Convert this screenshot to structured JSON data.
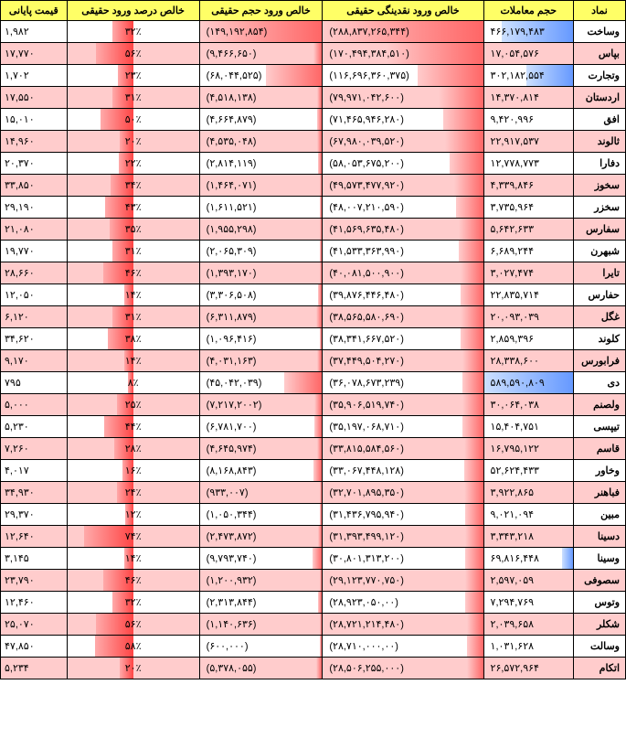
{
  "headers": {
    "symbol": "نماد",
    "volume": "حجم معاملات",
    "liquidity": "خالص ورود نقدینگی حقیقی",
    "netvol": "خالص ورود حجم حقیقی",
    "percent": "خالص درصد ورود حقیقی",
    "price": "قیمت پایانی"
  },
  "bar_color_red_start": "#ff6666",
  "bar_color_red_end": "#ffcccc",
  "bar_color_blue_start": "#6699ff",
  "bar_color_blue_end": "#cce0ff",
  "header_bg": "#ffff66",
  "alt_row_bg": "#ffcccc",
  "rows": [
    {
      "sym": "وساخت",
      "vol": "۴۶۶,۱۷۹,۴۸۳",
      "vol_blue": 80,
      "liq": "(۲۸۸,۸۳۷,۲۶۵,۳۴۴)",
      "liq_w": 100,
      "nv": "(۱۴۹,۱۹۲,۸۵۴)",
      "nv_w": 100,
      "pct": "۳۲٪",
      "pct_w": 32,
      "price": "۱,۹۸۲",
      "alt": 0
    },
    {
      "sym": "بپاس",
      "vol": "۱۷,۰۵۴,۵۷۶",
      "vol_blue": 0,
      "liq": "(۱۷۰,۴۹۴,۳۸۴,۵۱۰)",
      "liq_w": 60,
      "nv": "(۹,۴۶۶,۶۵۰)",
      "nv_w": 7,
      "pct": "۵۶٪",
      "pct_w": 56,
      "price": "۱۷,۷۷۰",
      "alt": 1
    },
    {
      "sym": "وتجارت",
      "vol": "۳۰۲,۱۸۲,۵۵۴",
      "vol_blue": 52,
      "liq": "(۱۱۶,۶۹۶,۳۶۰,۳۷۵)",
      "liq_w": 41,
      "nv": "(۶۸,۰۴۴,۵۲۵)",
      "nv_w": 46,
      "pct": "۲۳٪",
      "pct_w": 23,
      "price": "۱,۷۰۲",
      "alt": 0
    },
    {
      "sym": "اردستان",
      "vol": "۱۴,۳۷۰,۸۱۴",
      "vol_blue": 0,
      "liq": "(۷۹,۹۷۱,۰۴۲,۶۰۰)",
      "liq_w": 28,
      "nv": "(۴,۵۱۸,۱۳۸)",
      "nv_w": 4,
      "pct": "۳۱٪",
      "pct_w": 31,
      "price": "۱۷,۵۵۰",
      "alt": 1
    },
    {
      "sym": "افق",
      "vol": "۹,۴۲۰,۹۹۶",
      "vol_blue": 0,
      "liq": "(۷۱,۴۶۵,۹۴۶,۲۸۰)",
      "liq_w": 25,
      "nv": "(۴,۶۶۴,۸۷۹)",
      "nv_w": 4,
      "pct": "۵۰٪",
      "pct_w": 50,
      "price": "۱۵,۰۱۰",
      "alt": 0
    },
    {
      "sym": "ثالوند",
      "vol": "۲۲,۹۱۷,۵۳۷",
      "vol_blue": 0,
      "liq": "(۶۷,۹۸۰,۰۳۹,۵۲۰)",
      "liq_w": 24,
      "nv": "(۴,۵۳۵,۰۴۸)",
      "nv_w": 4,
      "pct": "۲۰٪",
      "pct_w": 20,
      "price": "۱۴,۹۶۰",
      "alt": 1
    },
    {
      "sym": "دفارا",
      "vol": "۱۲,۷۷۸,۷۷۳",
      "vol_blue": 0,
      "liq": "(۵۸,۰۵۳,۶۷۵,۲۰۰)",
      "liq_w": 21,
      "nv": "(۲,۸۱۴,۱۱۹)",
      "nv_w": 3,
      "pct": "۲۲٪",
      "pct_w": 22,
      "price": "۲۰,۳۷۰",
      "alt": 0
    },
    {
      "sym": "سخوز",
      "vol": "۴,۳۳۹,۸۴۶",
      "vol_blue": 0,
      "liq": "(۴۹,۵۷۳,۴۷۷,۹۲۰)",
      "liq_w": 18,
      "nv": "(۱,۴۶۴,۰۷۱)",
      "nv_w": 2,
      "pct": "۳۴٪",
      "pct_w": 34,
      "price": "۳۳,۸۵۰",
      "alt": 1
    },
    {
      "sym": "سخزر",
      "vol": "۳,۷۳۵,۹۶۴",
      "vol_blue": 0,
      "liq": "(۴۸,۰۰۷,۲۱۰,۵۹۰)",
      "liq_w": 17,
      "nv": "(۱,۶۱۱,۵۲۱)",
      "nv_w": 2,
      "pct": "۴۳٪",
      "pct_w": 43,
      "price": "۲۹,۱۹۰",
      "alt": 0
    },
    {
      "sym": "سفارس",
      "vol": "۵,۶۴۲,۶۳۳",
      "vol_blue": 0,
      "liq": "(۴۱,۵۶۹,۶۳۵,۴۸۰)",
      "liq_w": 15,
      "nv": "(۱,۹۵۵,۲۹۸)",
      "nv_w": 2,
      "pct": "۳۵٪",
      "pct_w": 35,
      "price": "۲۱,۰۸۰",
      "alt": 1
    },
    {
      "sym": "شبهرن",
      "vol": "۶,۶۸۹,۲۴۴",
      "vol_blue": 0,
      "liq": "(۴۱,۵۳۳,۳۶۳,۹۹۰)",
      "liq_w": 15,
      "nv": "(۲,۰۶۵,۳۰۹)",
      "nv_w": 2,
      "pct": "۳۱٪",
      "pct_w": 31,
      "price": "۱۹,۷۷۰",
      "alt": 0
    },
    {
      "sym": "تایرا",
      "vol": "۳,۰۲۷,۴۷۴",
      "vol_blue": 0,
      "liq": "(۴۰,۰۸۱,۵۰۰,۹۰۰)",
      "liq_w": 14,
      "nv": "(۱,۳۹۳,۱۷۰)",
      "nv_w": 2,
      "pct": "۴۶٪",
      "pct_w": 46,
      "price": "۲۸,۶۶۰",
      "alt": 1
    },
    {
      "sym": "حفارس",
      "vol": "۲۲,۸۳۵,۷۱۴",
      "vol_blue": 0,
      "liq": "(۳۹,۸۷۶,۴۴۶,۴۸۰)",
      "liq_w": 14,
      "nv": "(۳,۳۰۶,۵۰۸)",
      "nv_w": 3,
      "pct": "۱۴٪",
      "pct_w": 14,
      "price": "۱۲,۰۵۰",
      "alt": 0
    },
    {
      "sym": "غگل",
      "vol": "۲۰,۰۹۳,۰۳۹",
      "vol_blue": 0,
      "liq": "(۳۸,۵۶۵,۵۸۰,۶۹۰)",
      "liq_w": 14,
      "nv": "(۶,۳۱۱,۸۷۹)",
      "nv_w": 5,
      "pct": "۳۱٪",
      "pct_w": 31,
      "price": "۶,۱۲۰",
      "alt": 1
    },
    {
      "sym": "کلوند",
      "vol": "۲,۸۵۹,۳۹۶",
      "vol_blue": 0,
      "liq": "(۳۸,۳۴۱,۶۶۷,۵۲۰)",
      "liq_w": 14,
      "nv": "(۱,۰۹۶,۴۱۶)",
      "nv_w": 2,
      "pct": "۳۸٪",
      "pct_w": 38,
      "price": "۳۴,۶۲۰",
      "alt": 0
    },
    {
      "sym": "فرابورس",
      "vol": "۲۸,۳۳۸,۶۰۰",
      "vol_blue": 0,
      "liq": "(۳۷,۴۴۹,۵۰۴,۲۷۰)",
      "liq_w": 13,
      "nv": "(۴,۰۳۱,۱۶۳)",
      "nv_w": 4,
      "pct": "۱۴٪",
      "pct_w": 14,
      "price": "۹,۱۷۰",
      "alt": 1
    },
    {
      "sym": "دی",
      "vol": "۵۸۹,۵۹۰,۸۰۹",
      "vol_blue": 100,
      "liq": "(۳۶,۰۷۸,۶۷۳,۲۳۹)",
      "liq_w": 13,
      "nv": "(۴۵,۰۴۲,۰۳۹)",
      "nv_w": 31,
      "pct": "۸٪",
      "pct_w": 8,
      "price": "۷۹۵",
      "alt": 0
    },
    {
      "sym": "ولصنم",
      "vol": "۳۰,۰۶۴,۰۳۸",
      "vol_blue": 0,
      "liq": "(۳۵,۹۰۶,۵۱۹,۷۴۰)",
      "liq_w": 13,
      "nv": "(۷,۲۱۷,۲۰۰۲)",
      "nv_w": 6,
      "pct": "۲۵٪",
      "pct_w": 25,
      "price": "۵,۰۰۰",
      "alt": 1
    },
    {
      "sym": "تیپسی",
      "vol": "۱۵,۴۰۴,۷۵۱",
      "vol_blue": 0,
      "liq": "(۳۵,۱۹۷,۰۶۸,۷۱۰)",
      "liq_w": 13,
      "nv": "(۶,۷۸۱,۷۰۰)",
      "nv_w": 6,
      "pct": "۴۴٪",
      "pct_w": 44,
      "price": "۵,۲۳۰",
      "alt": 0
    },
    {
      "sym": "قاسم",
      "vol": "۱۶,۷۹۵,۱۲۲",
      "vol_blue": 0,
      "liq": "(۳۳,۸۱۵,۵۸۴,۵۶۰)",
      "liq_w": 12,
      "nv": "(۴,۶۴۵,۹۷۴)",
      "nv_w": 4,
      "pct": "۲۸٪",
      "pct_w": 28,
      "price": "۷,۲۶۰",
      "alt": 1
    },
    {
      "sym": "وخاور",
      "vol": "۵۲,۶۲۴,۴۳۳",
      "vol_blue": 0,
      "liq": "(۳۳,۰۶۷,۴۴۸,۱۲۸)",
      "liq_w": 12,
      "nv": "(۸,۱۶۸,۸۴۳)",
      "nv_w": 7,
      "pct": "۱۶٪",
      "pct_w": 16,
      "price": "۴,۰۱۷",
      "alt": 0
    },
    {
      "sym": "فباهنر",
      "vol": "۳,۹۲۲,۸۶۵",
      "vol_blue": 0,
      "liq": "(۳۲,۷۰۱,۸۹۵,۳۵۰)",
      "liq_w": 12,
      "nv": "(۹۳۳,۰۰۷)",
      "nv_w": 2,
      "pct": "۲۴٪",
      "pct_w": 24,
      "price": "۳۴,۹۳۰",
      "alt": 1
    },
    {
      "sym": "مبین",
      "vol": "۹,۰۲۱,۰۹۴",
      "vol_blue": 0,
      "liq": "(۳۱,۴۳۶,۷۹۵,۹۴۰)",
      "liq_w": 11,
      "nv": "(۱,۰۵۰,۳۴۴)",
      "nv_w": 2,
      "pct": "۱۲٪",
      "pct_w": 12,
      "price": "۲۹,۳۷۰",
      "alt": 0
    },
    {
      "sym": "دسینا",
      "vol": "۳,۳۴۳,۲۱۸",
      "vol_blue": 0,
      "liq": "(۳۱,۳۹۳,۴۹۹,۱۲۰)",
      "liq_w": 11,
      "nv": "(۲,۴۷۳,۸۷۲)",
      "nv_w": 3,
      "pct": "۷۴٪",
      "pct_w": 74,
      "price": "۱۲,۶۴۰",
      "alt": 1
    },
    {
      "sym": "وسینا",
      "vol": "۶۹,۸۱۶,۴۴۸",
      "vol_blue": 12,
      "liq": "(۳۰,۸۰۱,۳۱۳,۲۰۰)",
      "liq_w": 11,
      "nv": "(۹,۷۹۳,۷۴۰)",
      "nv_w": 8,
      "pct": "۱۴٪",
      "pct_w": 14,
      "price": "۳,۱۴۵",
      "alt": 0
    },
    {
      "sym": "سصوفی",
      "vol": "۲,۵۹۷,۰۵۹",
      "vol_blue": 0,
      "liq": "(۲۹,۱۲۳,۷۷۰,۷۵۰)",
      "liq_w": 11,
      "nv": "(۱,۲۰۰,۹۳۲)",
      "nv_w": 2,
      "pct": "۴۶٪",
      "pct_w": 46,
      "price": "۲۳,۷۹۰",
      "alt": 1
    },
    {
      "sym": "وتوس",
      "vol": "۷,۲۹۴,۷۶۹",
      "vol_blue": 0,
      "liq": "(۲۸,۹۲۳,۰۵۰,۰۰)",
      "liq_w": 11,
      "nv": "(۲,۳۱۳,۸۴۴)",
      "nv_w": 3,
      "pct": "۳۲٪",
      "pct_w": 32,
      "price": "۱۲,۴۶۰",
      "alt": 0
    },
    {
      "sym": "شکلر",
      "vol": "۲,۰۳۹,۶۵۸",
      "vol_blue": 0,
      "liq": "(۲۸,۷۲۱,۲۱۴,۴۸۰)",
      "liq_w": 10,
      "nv": "(۱,۱۴۰,۶۳۶)",
      "nv_w": 2,
      "pct": "۵۶٪",
      "pct_w": 56,
      "price": "۲۵,۰۷۰",
      "alt": 1
    },
    {
      "sym": "وسالت",
      "vol": "۱,۰۳۱,۶۲۸",
      "vol_blue": 0,
      "liq": "(۲۸,۷۱۰,۰۰۰,۰۰)",
      "liq_w": 10,
      "nv": "(۶۰۰,۰۰۰)",
      "nv_w": 2,
      "pct": "۵۸٪",
      "pct_w": 58,
      "price": "۴۷,۸۵۰",
      "alt": 0
    },
    {
      "sym": "اتکام",
      "vol": "۲۶,۵۷۲,۹۶۴",
      "vol_blue": 0,
      "liq": "(۲۸,۵۰۶,۲۵۵,۰۰۰)",
      "liq_w": 10,
      "nv": "(۵,۳۷۸,۰۵۵)",
      "nv_w": 5,
      "pct": "۲۰٪",
      "pct_w": 20,
      "price": "۵,۲۳۴",
      "alt": 1
    }
  ]
}
